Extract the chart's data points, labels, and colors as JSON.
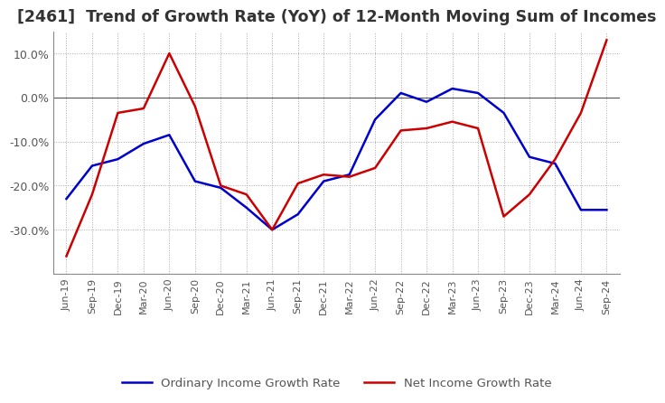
{
  "title": "[2461]  Trend of Growth Rate (YoY) of 12-Month Moving Sum of Incomes",
  "title_fontsize": 12.5,
  "x_labels": [
    "Jun-19",
    "Sep-19",
    "Dec-19",
    "Mar-20",
    "Jun-20",
    "Sep-20",
    "Dec-20",
    "Mar-21",
    "Jun-21",
    "Sep-21",
    "Dec-21",
    "Mar-22",
    "Jun-22",
    "Sep-22",
    "Dec-22",
    "Mar-23",
    "Jun-23",
    "Sep-23",
    "Dec-23",
    "Mar-24",
    "Jun-24",
    "Sep-24"
  ],
  "ordinary_income": [
    -23.0,
    -15.5,
    -14.0,
    -10.5,
    -8.5,
    -19.0,
    -20.5,
    -25.0,
    -30.0,
    -26.5,
    -19.0,
    -17.5,
    -5.0,
    1.0,
    -1.0,
    2.0,
    1.0,
    -3.5,
    -13.5,
    -15.0,
    -25.5,
    -25.5
  ],
  "net_income": [
    -36.0,
    -22.0,
    -3.5,
    -2.5,
    10.0,
    -2.0,
    -20.0,
    -22.0,
    -30.0,
    -19.5,
    -17.5,
    -18.0,
    -16.0,
    -7.5,
    -7.0,
    -5.5,
    -7.0,
    -27.0,
    -22.0,
    -14.0,
    -3.5,
    13.0
  ],
  "ordinary_color": "#0000cc",
  "net_color": "#cc0000",
  "ylim": [
    -40,
    15
  ],
  "yticks": [
    10.0,
    0.0,
    -10.0,
    -20.0,
    -30.0
  ],
  "background_color": "#ffffff",
  "grid_color": "#aaaaaa",
  "zero_line_color": "#555555",
  "legend_labels": [
    "Ordinary Income Growth Rate",
    "Net Income Growth Rate"
  ]
}
